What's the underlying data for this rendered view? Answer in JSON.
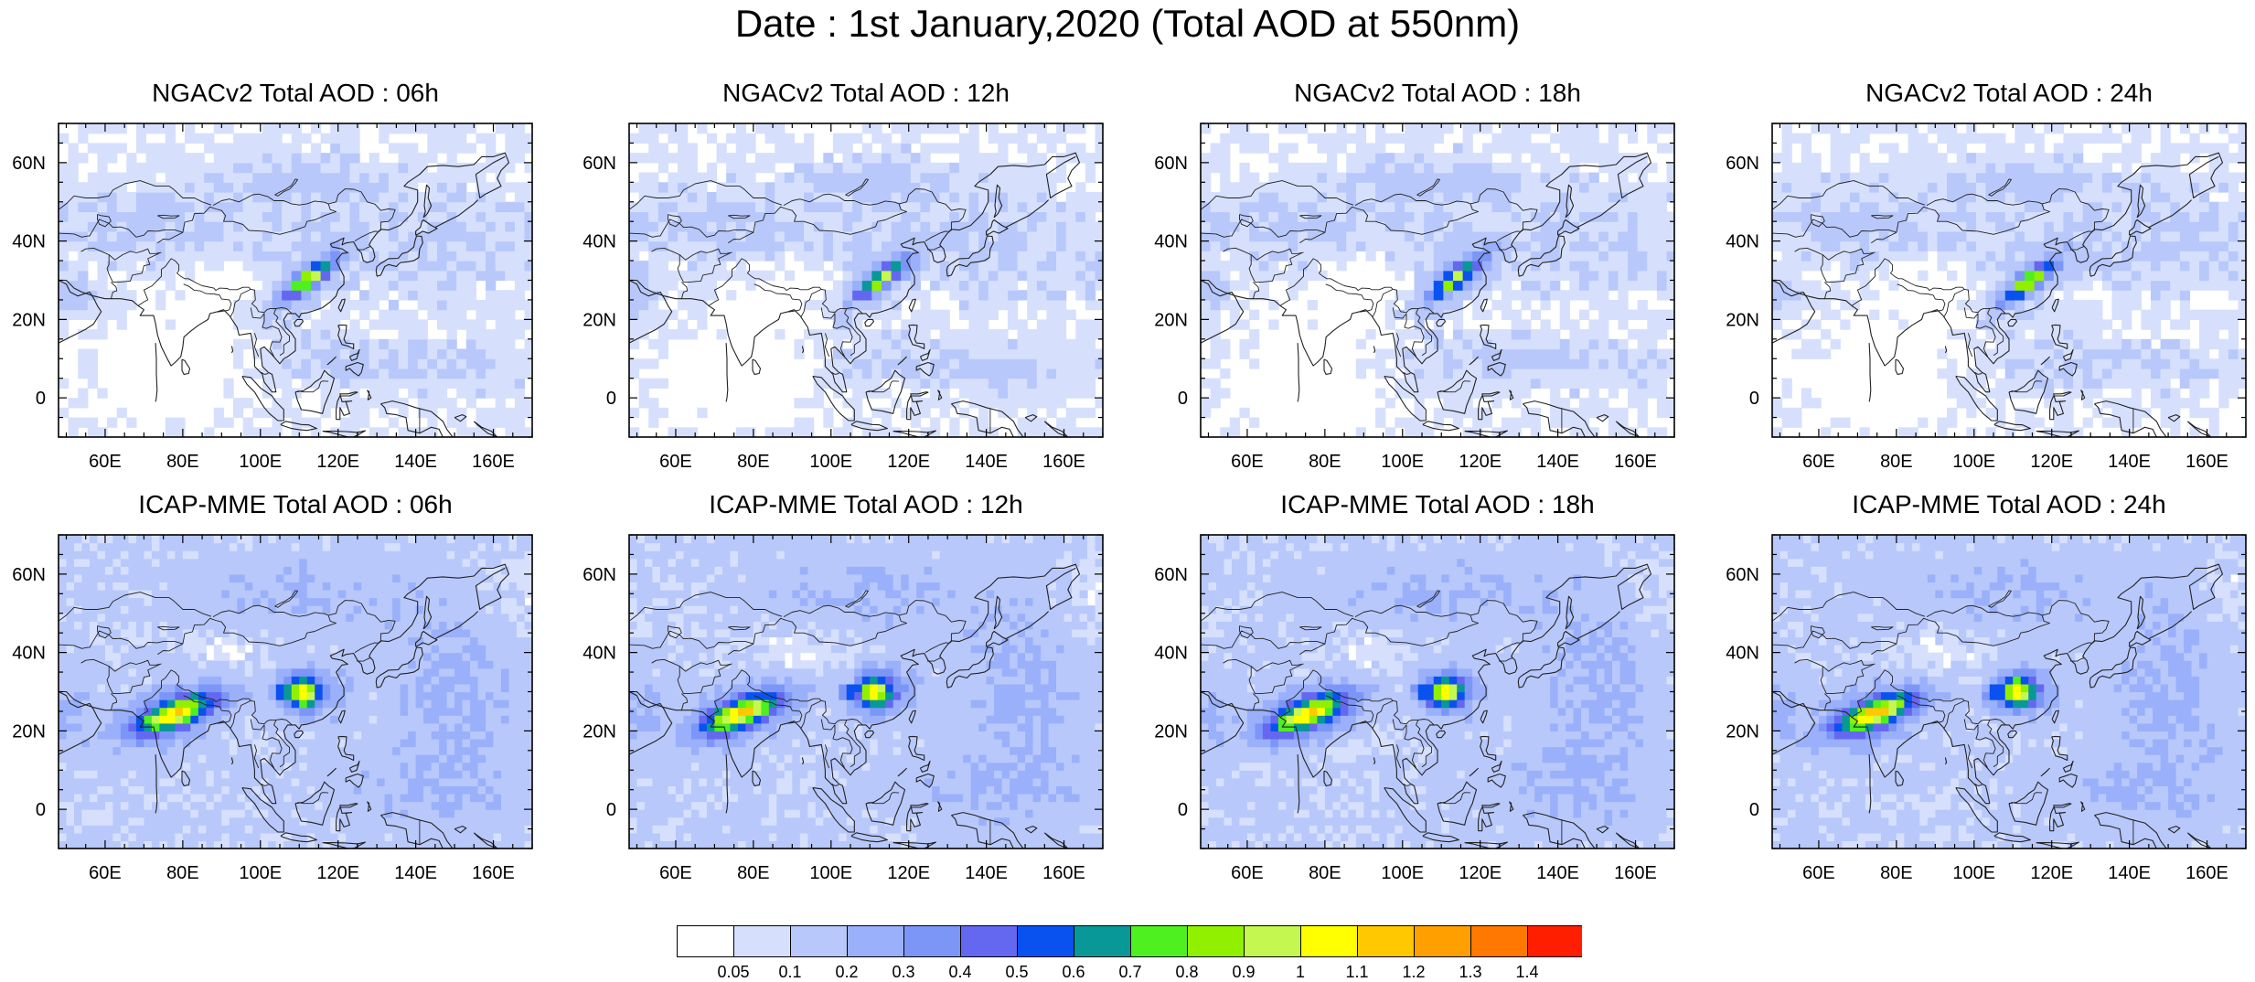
{
  "figure": {
    "title": "Date : 1st January,2020 (Total AOD at 550nm)"
  },
  "map_axes": {
    "lon_range": [
      48,
      170
    ],
    "lat_range": [
      -10,
      70
    ],
    "lon_ticks": [
      "60E",
      "80E",
      "100E",
      "120E",
      "140E",
      "160E"
    ],
    "lon_tick_values": [
      60,
      80,
      100,
      120,
      140,
      160
    ],
    "lat_ticks": [
      "60N",
      "40N",
      "20N",
      "0"
    ],
    "lat_tick_values": [
      60,
      40,
      20,
      0
    ]
  },
  "panels": [
    {
      "title": "NGACv2 Total AOD : 06h",
      "model": "NGACv2",
      "hour": "06h"
    },
    {
      "title": "NGACv2 Total AOD : 12h",
      "model": "NGACv2",
      "hour": "12h"
    },
    {
      "title": "NGACv2 Total AOD : 18h",
      "model": "NGACv2",
      "hour": "18h"
    },
    {
      "title": "NGACv2 Total AOD : 24h",
      "model": "NGACv2",
      "hour": "24h"
    },
    {
      "title": "ICAP-MME Total AOD : 06h",
      "model": "ICAP-MME",
      "hour": "06h"
    },
    {
      "title": "ICAP-MME Total AOD : 12h",
      "model": "ICAP-MME",
      "hour": "12h"
    },
    {
      "title": "ICAP-MME Total AOD : 18h",
      "model": "ICAP-MME",
      "hour": "18h"
    },
    {
      "title": "ICAP-MME Total AOD : 24h",
      "model": "ICAP-MME",
      "hour": "24h"
    }
  ],
  "colorbar": {
    "labels": [
      "0.05",
      "0.1",
      "0.2",
      "0.3",
      "0.4",
      "0.5",
      "0.6",
      "0.7",
      "0.8",
      "0.9",
      "1",
      "1.1",
      "1.2",
      "1.3",
      "1.4"
    ],
    "colors": [
      "#ffffff",
      "#d6e0fd",
      "#b8c8fb",
      "#9ab0fa",
      "#7c96f8",
      "#6468f0",
      "#0a52f0",
      "#099898",
      "#4ef020",
      "#90f000",
      "#c4f850",
      "#ffff00",
      "#ffc800",
      "#ffa000",
      "#ff7800",
      "#ff1e00"
    ]
  }
}
